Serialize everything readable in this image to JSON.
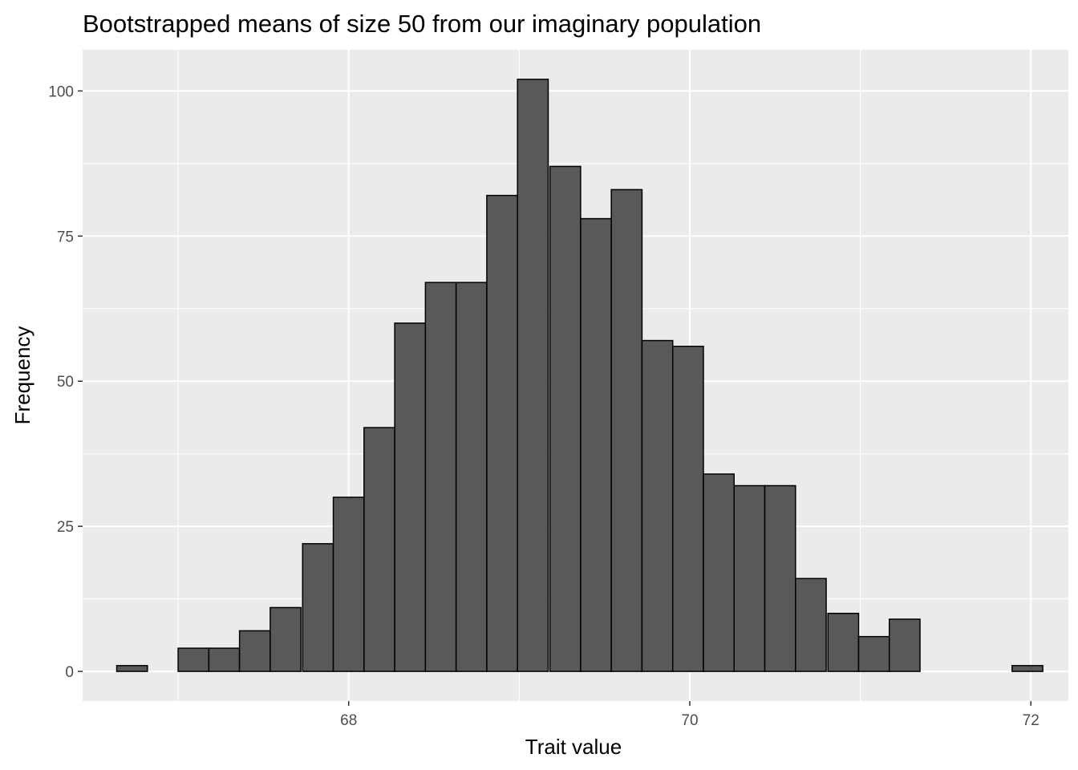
{
  "chart_data": {
    "type": "bar",
    "title": "Bootstrapped means of size 50 from our imaginary population",
    "xlabel": "Trait value",
    "ylabel": "Frequency",
    "x_ticks": [
      "68",
      "70",
      "72"
    ],
    "y_ticks": [
      "0",
      "25",
      "50",
      "75",
      "100"
    ],
    "xlim": [
      66.44,
      72.22
    ],
    "ylim": [
      -5.1,
      107.1
    ],
    "bin_width": 0.18,
    "bin_centers": [
      66.73,
      66.91,
      67.09,
      67.27,
      67.45,
      67.63,
      67.82,
      68.0,
      68.18,
      68.36,
      68.54,
      68.72,
      68.9,
      69.08,
      69.27,
      69.45,
      69.63,
      69.81,
      69.99,
      70.17,
      70.35,
      70.53,
      70.71,
      70.9,
      71.08,
      71.26,
      71.44,
      71.62,
      71.8,
      71.98
    ],
    "values": [
      1,
      0,
      4,
      4,
      7,
      11,
      22,
      30,
      42,
      60,
      67,
      67,
      82,
      102,
      87,
      78,
      83,
      57,
      56,
      34,
      32,
      32,
      16,
      10,
      6,
      9,
      0,
      0,
      0,
      1
    ],
    "colors": {
      "panel_background": "#ebebeb",
      "grid": "#ffffff",
      "bar_fill": "#595959",
      "bar_outline": "#000000",
      "tick_label": "#4d4d4d"
    },
    "grid": true,
    "legend": "none"
  }
}
